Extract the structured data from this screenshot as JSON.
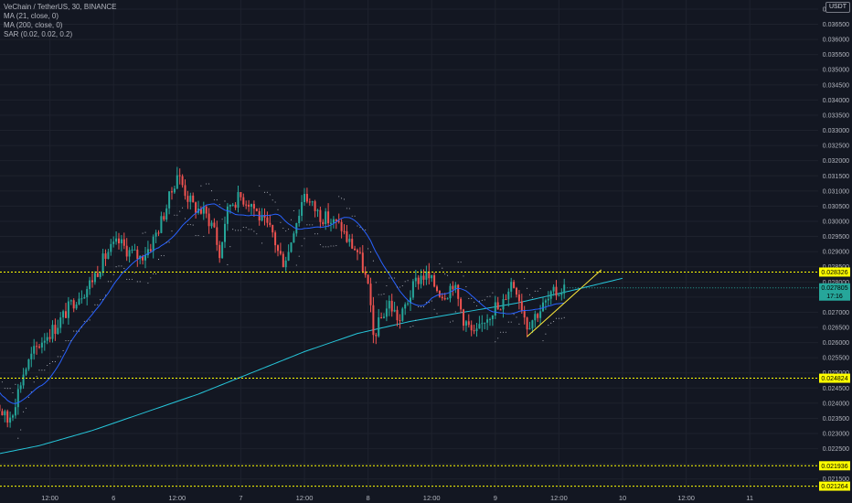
{
  "legend": {
    "title": "VeChain / TetherUS, 30, BINANCE",
    "ma21": "MA (21, close, 0)",
    "ma200": "MA (200, close, 0)",
    "sar": "SAR (0.02, 0.02, 0.2)"
  },
  "quote_badge": "USDT",
  "colors": {
    "background": "#131722",
    "grid": "#1e222d",
    "up": "#26a69a",
    "down": "#ef5350",
    "ma21": "#2962ff",
    "ma200": "#26c6da",
    "sar": "#b2b5be",
    "level": "#ffff00",
    "trendline": "#ffeb3b",
    "last_price": "#26a69a"
  },
  "chart_data": {
    "type": "candlestick",
    "title": "VeChain / TetherUS, 30, BINANCE",
    "y_axis": {
      "range": [
        0.0211,
        0.0373
      ],
      "tick_labels": [
        "0.037000",
        "0.036500",
        "0.036000",
        "0.035500",
        "0.035000",
        "0.034500",
        "0.034000",
        "0.033500",
        "0.033000",
        "0.032500",
        "0.032000",
        "0.031500",
        "0.031000",
        "0.030500",
        "0.030000",
        "0.029500",
        "0.029000",
        "0.028500",
        "0.028000",
        "0.027500",
        "0.027000",
        "0.026500",
        "0.026000",
        "0.025500",
        "0.025000",
        "0.024500",
        "0.024000",
        "0.023500",
        "0.023000",
        "0.022500",
        "0.022000",
        "0.021500"
      ],
      "ticks": [
        0.037,
        0.0365,
        0.036,
        0.0355,
        0.035,
        0.0345,
        0.034,
        0.0335,
        0.033,
        0.0325,
        0.032,
        0.0315,
        0.031,
        0.0305,
        0.03,
        0.0295,
        0.029,
        0.0285,
        0.028,
        0.0275,
        0.027,
        0.0265,
        0.026,
        0.0255,
        0.025,
        0.0245,
        0.024,
        0.0235,
        0.023,
        0.0225,
        0.022,
        0.0215
      ]
    },
    "x_axis": {
      "tick_labels": [
        "12:00",
        "6",
        "12:00",
        "7",
        "12:00",
        "8",
        "12:00",
        "9",
        "12:00",
        "10",
        "12:00",
        "11"
      ],
      "ticks": [
        24,
        48,
        72,
        96,
        120,
        144,
        168,
        192,
        216,
        240,
        264,
        288
      ]
    },
    "horizontal_levels": [
      {
        "value": 0.028326,
        "label": "0.028326"
      },
      {
        "value": 0.024824,
        "label": "0.024824"
      },
      {
        "value": 0.021936,
        "label": "0.021936"
      },
      {
        "value": 0.021264,
        "label": "0.021264"
      }
    ],
    "last_price": {
      "value": 0.027805,
      "label": "0.027805",
      "countdown": "17:16"
    },
    "trendline": {
      "from": [
        204,
        0.0262
      ],
      "to": [
        232,
        0.0284
      ]
    },
    "price_anchors": [
      [
        0,
        0.025
      ],
      [
        4,
        0.024
      ],
      [
        8,
        0.0234
      ],
      [
        10,
        0.0238
      ],
      [
        14,
        0.025
      ],
      [
        18,
        0.0257
      ],
      [
        22,
        0.0262
      ],
      [
        26,
        0.0265
      ],
      [
        30,
        0.027
      ],
      [
        34,
        0.0275
      ],
      [
        38,
        0.0278
      ],
      [
        42,
        0.0284
      ],
      [
        46,
        0.029
      ],
      [
        50,
        0.0293
      ],
      [
        54,
        0.029
      ],
      [
        58,
        0.0288
      ],
      [
        62,
        0.0292
      ],
      [
        66,
        0.03
      ],
      [
        70,
        0.031
      ],
      [
        72,
        0.0316
      ],
      [
        74,
        0.0312
      ],
      [
        76,
        0.0308
      ],
      [
        78,
        0.0305
      ],
      [
        82,
        0.0303
      ],
      [
        86,
        0.0298
      ],
      [
        88,
        0.0288
      ],
      [
        90,
        0.03
      ],
      [
        92,
        0.0306
      ],
      [
        96,
        0.0308
      ],
      [
        100,
        0.0306
      ],
      [
        104,
        0.03
      ],
      [
        108,
        0.0296
      ],
      [
        110,
        0.029
      ],
      [
        112,
        0.0287
      ],
      [
        114,
        0.029
      ],
      [
        116,
        0.0298
      ],
      [
        118,
        0.0303
      ],
      [
        120,
        0.031
      ],
      [
        122,
        0.0306
      ],
      [
        126,
        0.0302
      ],
      [
        130,
        0.03
      ],
      [
        134,
        0.0298
      ],
      [
        136,
        0.0294
      ],
      [
        140,
        0.029
      ],
      [
        142,
        0.0285
      ],
      [
        144,
        0.0278
      ],
      [
        146,
        0.0262
      ],
      [
        148,
        0.0266
      ],
      [
        150,
        0.027
      ],
      [
        152,
        0.0273
      ],
      [
        154,
        0.027
      ],
      [
        156,
        0.0267
      ],
      [
        158,
        0.0272
      ],
      [
        160,
        0.0276
      ],
      [
        162,
        0.028
      ],
      [
        164,
        0.0282
      ],
      [
        166,
        0.0282
      ],
      [
        168,
        0.028
      ],
      [
        170,
        0.0278
      ],
      [
        172,
        0.0276
      ],
      [
        174,
        0.0277
      ],
      [
        176,
        0.028
      ],
      [
        178,
        0.0274
      ],
      [
        180,
        0.0268
      ],
      [
        182,
        0.0265
      ],
      [
        184,
        0.0262
      ],
      [
        186,
        0.0264
      ],
      [
        188,
        0.0268
      ],
      [
        190,
        0.027
      ],
      [
        192,
        0.0272
      ],
      [
        194,
        0.027
      ],
      [
        196,
        0.0276
      ],
      [
        198,
        0.028
      ],
      [
        200,
        0.0278
      ],
      [
        202,
        0.0272
      ],
      [
        204,
        0.0266
      ],
      [
        206,
        0.0268
      ],
      [
        208,
        0.027
      ],
      [
        210,
        0.0272
      ],
      [
        212,
        0.0274
      ],
      [
        214,
        0.0276
      ],
      [
        216,
        0.0277
      ],
      [
        218,
        0.0278
      ]
    ],
    "ma200_anchors": [
      [
        0,
        0.02225
      ],
      [
        20,
        0.0226
      ],
      [
        40,
        0.0231
      ],
      [
        60,
        0.0237
      ],
      [
        80,
        0.0243
      ],
      [
        100,
        0.025
      ],
      [
        120,
        0.0257
      ],
      [
        140,
        0.0263
      ],
      [
        160,
        0.0267
      ],
      [
        180,
        0.027
      ],
      [
        200,
        0.0273
      ],
      [
        220,
        0.0277
      ],
      [
        240,
        0.02812
      ]
    ]
  }
}
